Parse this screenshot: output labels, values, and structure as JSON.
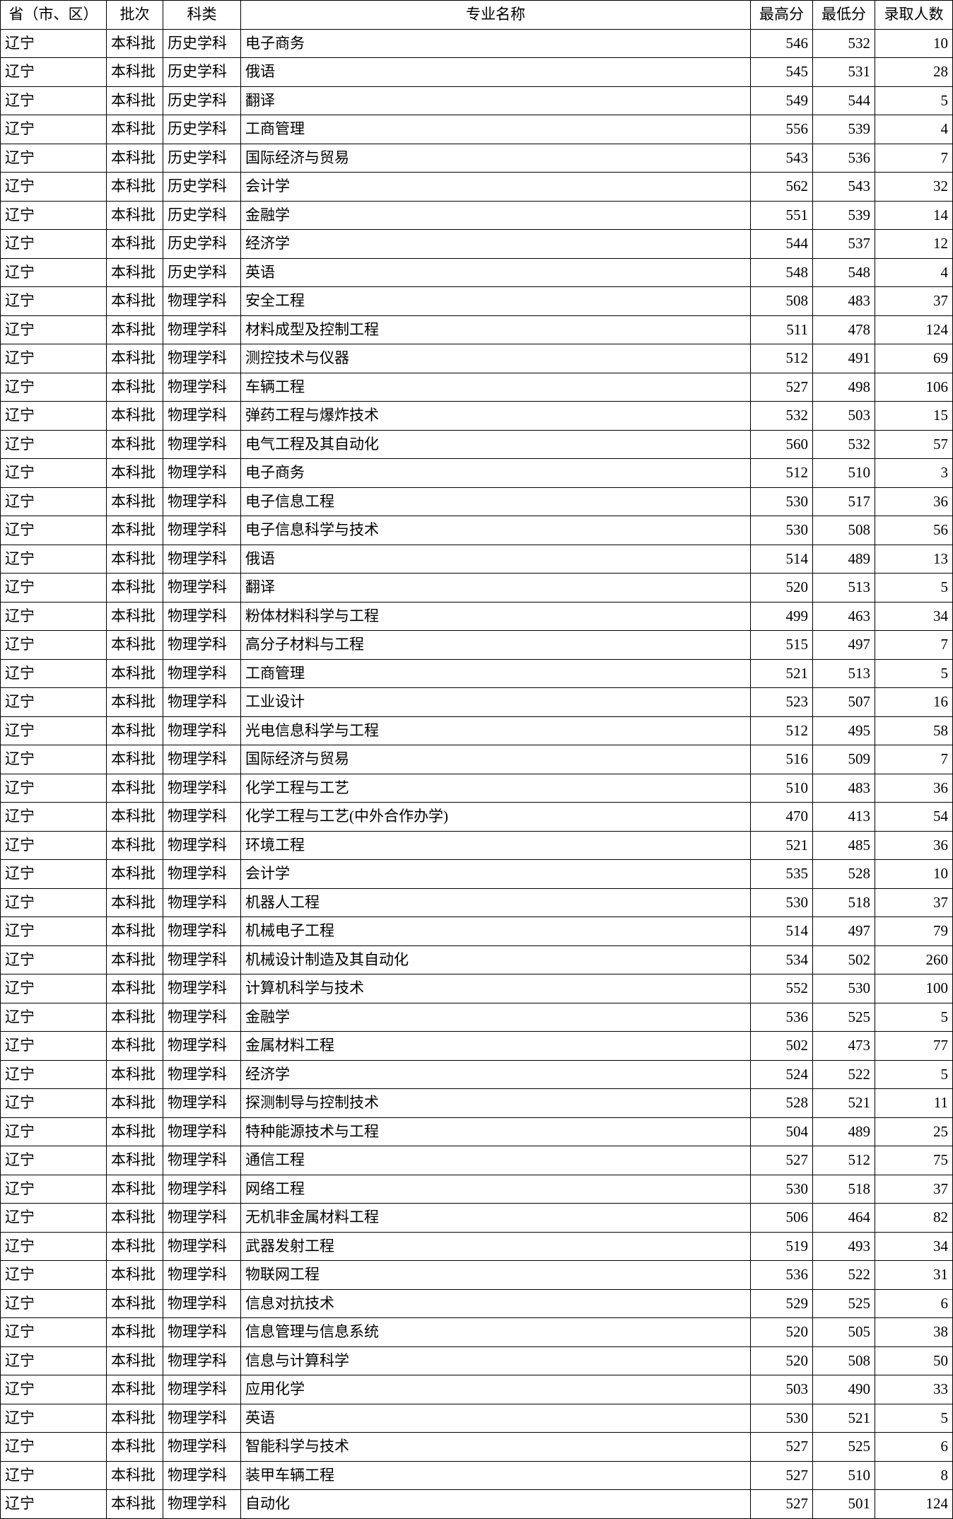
{
  "table": {
    "headers": {
      "province": "省（市、区）",
      "batch": "批次",
      "subject": "科类",
      "major": "专业名称",
      "max": "最高分",
      "min": "最低分",
      "count": "录取人数"
    },
    "rows": [
      {
        "province": "辽宁",
        "batch": "本科批",
        "subject": "历史学科",
        "major": "电子商务",
        "max": 546,
        "min": 532,
        "count": 10
      },
      {
        "province": "辽宁",
        "batch": "本科批",
        "subject": "历史学科",
        "major": "俄语",
        "max": 545,
        "min": 531,
        "count": 28
      },
      {
        "province": "辽宁",
        "batch": "本科批",
        "subject": "历史学科",
        "major": "翻译",
        "max": 549,
        "min": 544,
        "count": 5
      },
      {
        "province": "辽宁",
        "batch": "本科批",
        "subject": "历史学科",
        "major": "工商管理",
        "max": 556,
        "min": 539,
        "count": 4
      },
      {
        "province": "辽宁",
        "batch": "本科批",
        "subject": "历史学科",
        "major": "国际经济与贸易",
        "max": 543,
        "min": 536,
        "count": 7
      },
      {
        "province": "辽宁",
        "batch": "本科批",
        "subject": "历史学科",
        "major": "会计学",
        "max": 562,
        "min": 543,
        "count": 32
      },
      {
        "province": "辽宁",
        "batch": "本科批",
        "subject": "历史学科",
        "major": "金融学",
        "max": 551,
        "min": 539,
        "count": 14
      },
      {
        "province": "辽宁",
        "batch": "本科批",
        "subject": "历史学科",
        "major": "经济学",
        "max": 544,
        "min": 537,
        "count": 12
      },
      {
        "province": "辽宁",
        "batch": "本科批",
        "subject": "历史学科",
        "major": "英语",
        "max": 548,
        "min": 548,
        "count": 4
      },
      {
        "province": "辽宁",
        "batch": "本科批",
        "subject": "物理学科",
        "major": "安全工程",
        "max": 508,
        "min": 483,
        "count": 37
      },
      {
        "province": "辽宁",
        "batch": "本科批",
        "subject": "物理学科",
        "major": "材料成型及控制工程",
        "max": 511,
        "min": 478,
        "count": 124
      },
      {
        "province": "辽宁",
        "batch": "本科批",
        "subject": "物理学科",
        "major": "测控技术与仪器",
        "max": 512,
        "min": 491,
        "count": 69
      },
      {
        "province": "辽宁",
        "batch": "本科批",
        "subject": "物理学科",
        "major": "车辆工程",
        "max": 527,
        "min": 498,
        "count": 106
      },
      {
        "province": "辽宁",
        "batch": "本科批",
        "subject": "物理学科",
        "major": "弹药工程与爆炸技术",
        "max": 532,
        "min": 503,
        "count": 15
      },
      {
        "province": "辽宁",
        "batch": "本科批",
        "subject": "物理学科",
        "major": "电气工程及其自动化",
        "max": 560,
        "min": 532,
        "count": 57
      },
      {
        "province": "辽宁",
        "batch": "本科批",
        "subject": "物理学科",
        "major": "电子商务",
        "max": 512,
        "min": 510,
        "count": 3
      },
      {
        "province": "辽宁",
        "batch": "本科批",
        "subject": "物理学科",
        "major": "电子信息工程",
        "max": 530,
        "min": 517,
        "count": 36
      },
      {
        "province": "辽宁",
        "batch": "本科批",
        "subject": "物理学科",
        "major": "电子信息科学与技术",
        "max": 530,
        "min": 508,
        "count": 56
      },
      {
        "province": "辽宁",
        "batch": "本科批",
        "subject": "物理学科",
        "major": "俄语",
        "max": 514,
        "min": 489,
        "count": 13
      },
      {
        "province": "辽宁",
        "batch": "本科批",
        "subject": "物理学科",
        "major": "翻译",
        "max": 520,
        "min": 513,
        "count": 5
      },
      {
        "province": "辽宁",
        "batch": "本科批",
        "subject": "物理学科",
        "major": "粉体材料科学与工程",
        "max": 499,
        "min": 463,
        "count": 34
      },
      {
        "province": "辽宁",
        "batch": "本科批",
        "subject": "物理学科",
        "major": "高分子材料与工程",
        "max": 515,
        "min": 497,
        "count": 7
      },
      {
        "province": "辽宁",
        "batch": "本科批",
        "subject": "物理学科",
        "major": "工商管理",
        "max": 521,
        "min": 513,
        "count": 5
      },
      {
        "province": "辽宁",
        "batch": "本科批",
        "subject": "物理学科",
        "major": "工业设计",
        "max": 523,
        "min": 507,
        "count": 16
      },
      {
        "province": "辽宁",
        "batch": "本科批",
        "subject": "物理学科",
        "major": "光电信息科学与工程",
        "max": 512,
        "min": 495,
        "count": 58
      },
      {
        "province": "辽宁",
        "batch": "本科批",
        "subject": "物理学科",
        "major": "国际经济与贸易",
        "max": 516,
        "min": 509,
        "count": 7
      },
      {
        "province": "辽宁",
        "batch": "本科批",
        "subject": "物理学科",
        "major": "化学工程与工艺",
        "max": 510,
        "min": 483,
        "count": 36
      },
      {
        "province": "辽宁",
        "batch": "本科批",
        "subject": "物理学科",
        "major": "化学工程与工艺(中外合作办学)",
        "max": 470,
        "min": 413,
        "count": 54
      },
      {
        "province": "辽宁",
        "batch": "本科批",
        "subject": "物理学科",
        "major": "环境工程",
        "max": 521,
        "min": 485,
        "count": 36
      },
      {
        "province": "辽宁",
        "batch": "本科批",
        "subject": "物理学科",
        "major": "会计学",
        "max": 535,
        "min": 528,
        "count": 10
      },
      {
        "province": "辽宁",
        "batch": "本科批",
        "subject": "物理学科",
        "major": "机器人工程",
        "max": 530,
        "min": 518,
        "count": 37
      },
      {
        "province": "辽宁",
        "batch": "本科批",
        "subject": "物理学科",
        "major": "机械电子工程",
        "max": 514,
        "min": 497,
        "count": 79
      },
      {
        "province": "辽宁",
        "batch": "本科批",
        "subject": "物理学科",
        "major": "机械设计制造及其自动化",
        "max": 534,
        "min": 502,
        "count": 260
      },
      {
        "province": "辽宁",
        "batch": "本科批",
        "subject": "物理学科",
        "major": "计算机科学与技术",
        "max": 552,
        "min": 530,
        "count": 100
      },
      {
        "province": "辽宁",
        "batch": "本科批",
        "subject": "物理学科",
        "major": "金融学",
        "max": 536,
        "min": 525,
        "count": 5
      },
      {
        "province": "辽宁",
        "batch": "本科批",
        "subject": "物理学科",
        "major": "金属材料工程",
        "max": 502,
        "min": 473,
        "count": 77
      },
      {
        "province": "辽宁",
        "batch": "本科批",
        "subject": "物理学科",
        "major": "经济学",
        "max": 524,
        "min": 522,
        "count": 5
      },
      {
        "province": "辽宁",
        "batch": "本科批",
        "subject": "物理学科",
        "major": "探测制导与控制技术",
        "max": 528,
        "min": 521,
        "count": 11
      },
      {
        "province": "辽宁",
        "batch": "本科批",
        "subject": "物理学科",
        "major": "特种能源技术与工程",
        "max": 504,
        "min": 489,
        "count": 25
      },
      {
        "province": "辽宁",
        "batch": "本科批",
        "subject": "物理学科",
        "major": "通信工程",
        "max": 527,
        "min": 512,
        "count": 75
      },
      {
        "province": "辽宁",
        "batch": "本科批",
        "subject": "物理学科",
        "major": "网络工程",
        "max": 530,
        "min": 518,
        "count": 37
      },
      {
        "province": "辽宁",
        "batch": "本科批",
        "subject": "物理学科",
        "major": "无机非金属材料工程",
        "max": 506,
        "min": 464,
        "count": 82
      },
      {
        "province": "辽宁",
        "batch": "本科批",
        "subject": "物理学科",
        "major": "武器发射工程",
        "max": 519,
        "min": 493,
        "count": 34
      },
      {
        "province": "辽宁",
        "batch": "本科批",
        "subject": "物理学科",
        "major": "物联网工程",
        "max": 536,
        "min": 522,
        "count": 31
      },
      {
        "province": "辽宁",
        "batch": "本科批",
        "subject": "物理学科",
        "major": "信息对抗技术",
        "max": 529,
        "min": 525,
        "count": 6
      },
      {
        "province": "辽宁",
        "batch": "本科批",
        "subject": "物理学科",
        "major": "信息管理与信息系统",
        "max": 520,
        "min": 505,
        "count": 38
      },
      {
        "province": "辽宁",
        "batch": "本科批",
        "subject": "物理学科",
        "major": "信息与计算科学",
        "max": 520,
        "min": 508,
        "count": 50
      },
      {
        "province": "辽宁",
        "batch": "本科批",
        "subject": "物理学科",
        "major": "应用化学",
        "max": 503,
        "min": 490,
        "count": 33
      },
      {
        "province": "辽宁",
        "batch": "本科批",
        "subject": "物理学科",
        "major": "英语",
        "max": 530,
        "min": 521,
        "count": 5
      },
      {
        "province": "辽宁",
        "batch": "本科批",
        "subject": "物理学科",
        "major": "智能科学与技术",
        "max": 527,
        "min": 525,
        "count": 6
      },
      {
        "province": "辽宁",
        "batch": "本科批",
        "subject": "物理学科",
        "major": "装甲车辆工程",
        "max": 527,
        "min": 510,
        "count": 8
      },
      {
        "province": "辽宁",
        "batch": "本科批",
        "subject": "物理学科",
        "major": "自动化",
        "max": 527,
        "min": 501,
        "count": 124
      }
    ]
  }
}
